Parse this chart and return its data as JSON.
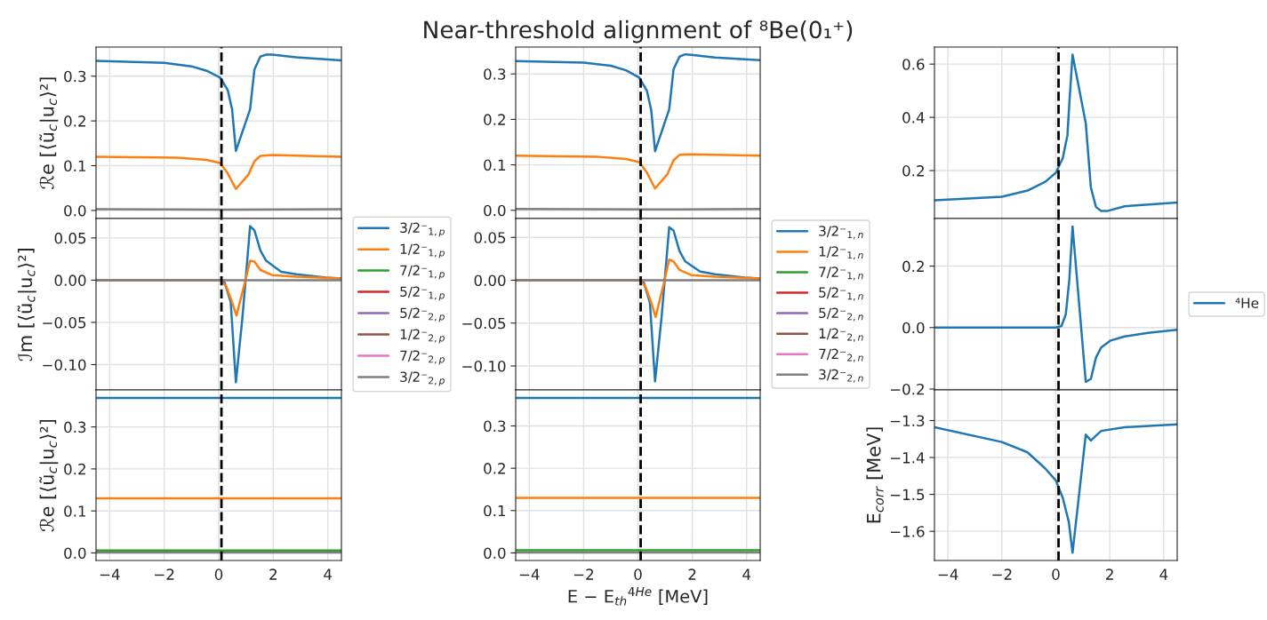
{
  "chart_data": [
    {
      "type": "line",
      "ylabel": "ℛe [⟨ũ$_{c}$|u$_{c}$⟩²]",
      "xlim": [
        -4.5,
        4.5
      ],
      "ylim": [
        -0.018,
        0.365
      ],
      "xticks": [
        {
          "value": -4,
          "label": null
        },
        {
          "value": -2,
          "label": null
        },
        {
          "value": 0,
          "label": null
        },
        {
          "value": 2,
          "label": null
        },
        {
          "value": 4,
          "label": null
        }
      ],
      "yticks": [
        {
          "value": 0,
          "label": "0.0"
        },
        0.1,
        0.2,
        0.3
      ],
      "tick_labels": "y",
      "grid": true,
      "ref_lines": [
        {
          "axis": "x",
          "value": 0.1,
          "color": "#000000",
          "line_style": "dashed"
        }
      ],
      "series": [
        {
          "color": "#1f77b4",
          "x": [
            -4.5,
            -2.0,
            -1.0,
            -0.44,
            0.05,
            0.33,
            0.49,
            0.63,
            1.15,
            1.31,
            1.53,
            1.74,
            1.96,
            2.84,
            4.5
          ],
          "values": [
            0.334,
            0.33,
            0.322,
            0.312,
            0.297,
            0.269,
            0.226,
            0.133,
            0.226,
            0.315,
            0.344,
            0.348,
            0.348,
            0.342,
            0.335
          ]
        },
        {
          "color": "#ff7f0e",
          "x": [
            -4.5,
            -1.53,
            -0.44,
            0.05,
            0.33,
            0.63,
            1.09,
            1.31,
            1.53,
            1.96,
            4.5
          ],
          "values": [
            0.12,
            0.118,
            0.113,
            0.106,
            0.083,
            0.048,
            0.08,
            0.11,
            0.122,
            0.124,
            0.12
          ]
        },
        {
          "color": "#7f7f7f",
          "x": [
            -4.5,
            0.6,
            4.5
          ],
          "values": [
            0.003,
            0.002,
            0.003
          ]
        }
      ]
    },
    {
      "type": "line",
      "title": "Near-threshold alignment of ⁸Be(0₁⁺)",
      "xlim": [
        -4.5,
        4.5
      ],
      "ylim": [
        -0.018,
        0.359
      ],
      "xticks": [
        {
          "value": -4,
          "label": null
        },
        {
          "value": -2,
          "label": null
        },
        {
          "value": 0,
          "label": null
        },
        {
          "value": 2,
          "label": null
        },
        {
          "value": 4,
          "label": null
        }
      ],
      "yticks": [
        {
          "value": 0,
          "label": "0.0"
        },
        0.1,
        0.2,
        0.3
      ],
      "tick_labels": "y",
      "grid": true,
      "ref_lines": [
        {
          "axis": "x",
          "value": 0.1,
          "color": "#000000",
          "line_style": "dashed"
        }
      ],
      "series": [
        {
          "color": "#1f77b4",
          "x": [
            -4.5,
            -2.0,
            -1.0,
            -0.44,
            0.05,
            0.33,
            0.49,
            0.63,
            1.15,
            1.31,
            1.53,
            1.74,
            1.96,
            2.84,
            4.5
          ],
          "values": [
            0.328,
            0.325,
            0.318,
            0.308,
            0.292,
            0.263,
            0.22,
            0.13,
            0.222,
            0.31,
            0.338,
            0.343,
            0.342,
            0.336,
            0.33
          ]
        },
        {
          "color": "#ff7f0e",
          "x": [
            -4.5,
            -1.53,
            -0.44,
            0.05,
            0.33,
            0.63,
            1.09,
            1.31,
            1.53,
            1.96,
            4.5
          ],
          "values": [
            0.12,
            0.118,
            0.113,
            0.106,
            0.083,
            0.048,
            0.08,
            0.11,
            0.122,
            0.123,
            0.12
          ]
        },
        {
          "color": "#7f7f7f",
          "x": [
            -4.5,
            0.6,
            4.5
          ],
          "values": [
            0.003,
            0.002,
            0.003
          ]
        }
      ]
    },
    {
      "type": "line",
      "xlim": [
        -4.5,
        4.5
      ],
      "ylim": [
        0.02,
        0.664
      ],
      "xticks": [
        {
          "value": -4,
          "label": null
        },
        {
          "value": -2,
          "label": null
        },
        {
          "value": 0,
          "label": null
        },
        {
          "value": 2,
          "label": null
        },
        {
          "value": 4,
          "label": null
        }
      ],
      "yticks": [
        0.2,
        0.4,
        0.6
      ],
      "tick_labels": "y",
      "grid": true,
      "ref_lines": [
        {
          "axis": "x",
          "value": 0.1,
          "color": "#000000",
          "line_style": "dashed"
        }
      ],
      "series": [
        {
          "color": "#1f77b4",
          "x": [
            -4.5,
            -2.0,
            -1.05,
            -0.39,
            0.0,
            0.26,
            0.43,
            0.5,
            0.62,
            1.11,
            1.3,
            1.49,
            1.68,
            1.9,
            2.55,
            3.21,
            4.5
          ],
          "values": [
            0.088,
            0.102,
            0.125,
            0.158,
            0.192,
            0.248,
            0.333,
            0.451,
            0.636,
            0.378,
            0.136,
            0.063,
            0.048,
            0.048,
            0.066,
            0.071,
            0.08
          ]
        }
      ]
    },
    {
      "type": "line",
      "ylabel": "ℐm [⟨ũ$_{c}$|u$_{c}$⟩²]",
      "xlim": [
        -4.5,
        4.5
      ],
      "ylim": [
        -0.13,
        0.073
      ],
      "xticks": [
        {
          "value": -4,
          "label": null
        },
        {
          "value": -2,
          "label": null
        },
        {
          "value": 0,
          "label": null
        },
        {
          "value": 2,
          "label": null
        },
        {
          "value": 4,
          "label": null
        }
      ],
      "yticks": [
        {
          "value": -0.1,
          "label": "−0.10"
        },
        {
          "value": -0.05,
          "label": "−0.05"
        },
        {
          "value": 0,
          "label": "0.00"
        },
        0.05
      ],
      "tick_labels": "y",
      "grid": true,
      "legend": "right",
      "ref_lines": [
        {
          "axis": "x",
          "value": 0.1,
          "color": "#000000",
          "line_style": "dashed"
        }
      ],
      "series": [
        {
          "name": "3/2⁻$_{1,p}$",
          "color": "#1f77b4",
          "x": [
            -4.5,
            0.05,
            0.22,
            0.44,
            0.63,
            0.87,
            0.98,
            1.15,
            1.31,
            1.53,
            1.74,
            2.29,
            2.84,
            3.93,
            4.5
          ],
          "values": [
            0,
            0,
            -0.003,
            -0.026,
            -0.121,
            -0.044,
            -0.002,
            0.064,
            0.059,
            0.035,
            0.023,
            0.01,
            0.007,
            0.003,
            0.002
          ]
        },
        {
          "name": "1/2⁻$_{1,p}$",
          "color": "#ff7f0e",
          "x": [
            -4.5,
            0.05,
            0.27,
            0.49,
            0.65,
            0.98,
            1.15,
            1.31,
            1.53,
            1.96,
            2.84,
            4.5
          ],
          "values": [
            0,
            0,
            -0.007,
            -0.026,
            -0.042,
            0,
            0.023,
            0.022,
            0.012,
            0.006,
            0.004,
            0.002
          ]
        },
        {
          "name": "7/2⁻$_{1,p}$",
          "color": "#2ca02c",
          "values": [
            null
          ]
        },
        {
          "name": "5/2⁻$_{1,p}$",
          "color": "#d62728",
          "values": [
            null
          ]
        },
        {
          "name": "5/2⁻$_{2,p}$",
          "color": "#9467bd",
          "values": [
            null
          ]
        },
        {
          "name": "1/2⁻$_{2,p}$",
          "color": "#8c564b",
          "values": [
            null
          ]
        },
        {
          "name": "7/2⁻$_{2,p}$",
          "color": "#e377c2",
          "values": [
            null
          ]
        },
        {
          "name": "3/2⁻$_{2,p}$",
          "color": "#7f7f7f",
          "x": [
            -4.5,
            0.05,
            4.5
          ],
          "values": [
            0,
            0,
            0
          ]
        }
      ]
    },
    {
      "type": "line",
      "xlim": [
        -4.5,
        4.5
      ],
      "ylim": [
        -0.128,
        0.072
      ],
      "xticks": [
        {
          "value": -4,
          "label": null
        },
        {
          "value": -2,
          "label": null
        },
        {
          "value": 0,
          "label": null
        },
        {
          "value": 2,
          "label": null
        },
        {
          "value": 4,
          "label": null
        }
      ],
      "yticks": [
        {
          "value": -0.1,
          "label": "−0.10"
        },
        {
          "value": -0.05,
          "label": "−0.05"
        },
        {
          "value": 0,
          "label": "0.00"
        },
        0.05
      ],
      "tick_labels": "y",
      "grid": true,
      "legend": "right",
      "ref_lines": [
        {
          "axis": "x",
          "value": 0.1,
          "color": "#000000",
          "line_style": "dashed"
        }
      ],
      "series": [
        {
          "name": "3/2⁻$_{1,n}$",
          "color": "#1f77b4",
          "x": [
            -4.5,
            0.05,
            0.22,
            0.44,
            0.63,
            0.87,
            0.98,
            1.15,
            1.31,
            1.53,
            1.74,
            2.29,
            2.84,
            3.93,
            4.5
          ],
          "values": [
            0,
            0,
            -0.003,
            -0.026,
            -0.118,
            -0.043,
            -0.002,
            0.062,
            0.058,
            0.034,
            0.022,
            0.01,
            0.007,
            0.003,
            0.002
          ]
        },
        {
          "name": "1/2⁻$_{1,n}$",
          "color": "#ff7f0e",
          "x": [
            -4.5,
            0.05,
            0.27,
            0.49,
            0.65,
            0.98,
            1.15,
            1.31,
            1.53,
            1.96,
            2.84,
            4.5
          ],
          "values": [
            0,
            0,
            -0.007,
            -0.026,
            -0.043,
            0,
            0.024,
            0.022,
            0.012,
            0.006,
            0.004,
            0.002
          ]
        },
        {
          "name": "7/2⁻$_{1,n}$",
          "color": "#2ca02c",
          "values": [
            null
          ]
        },
        {
          "name": "5/2⁻$_{1,n}$",
          "color": "#d62728",
          "values": [
            null
          ]
        },
        {
          "name": "5/2⁻$_{2,n}$",
          "color": "#9467bd",
          "values": [
            null
          ]
        },
        {
          "name": "1/2⁻$_{2,n}$",
          "color": "#8c564b",
          "values": [
            null
          ]
        },
        {
          "name": "7/2⁻$_{2,n}$",
          "color": "#e377c2",
          "values": [
            null
          ]
        },
        {
          "name": "3/2⁻$_{2,n}$",
          "color": "#7f7f7f",
          "x": [
            -4.5,
            0.05,
            4.5
          ],
          "values": [
            0,
            0,
            0
          ]
        }
      ]
    },
    {
      "type": "line",
      "xlim": [
        -4.5,
        4.5
      ],
      "ylim": [
        -0.203,
        0.355
      ],
      "xticks": [
        {
          "value": -4,
          "label": null
        },
        {
          "value": -2,
          "label": null
        },
        {
          "value": 0,
          "label": null
        },
        {
          "value": 2,
          "label": null
        },
        {
          "value": 4,
          "label": null
        }
      ],
      "yticks": [
        {
          "value": -0.2,
          "label": "−0.2"
        },
        {
          "value": 0,
          "label": "0.0"
        },
        0.2
      ],
      "tick_labels": "y",
      "grid": true,
      "legend": "right",
      "ref_lines": [
        {
          "axis": "x",
          "value": 0.1,
          "color": "#000000",
          "line_style": "dashed"
        }
      ],
      "series": [
        {
          "name": "⁴He",
          "color": "#1f77b4",
          "x": [
            -4.5,
            0.0,
            0.21,
            0.37,
            0.5,
            0.62,
            1.11,
            1.3,
            1.49,
            1.68,
            2.01,
            2.55,
            3.42,
            4.5
          ],
          "values": [
            0,
            0,
            0.005,
            0.043,
            0.155,
            0.329,
            -0.177,
            -0.167,
            -0.097,
            -0.065,
            -0.043,
            -0.029,
            -0.017,
            -0.007
          ]
        }
      ]
    },
    {
      "type": "line",
      "ylabel": "ℛe [⟨ũ$_{c}$|u$_{c}$⟩²]",
      "xlim": [
        -4.5,
        4.5
      ],
      "ylim": [
        -0.018,
        0.388
      ],
      "xticks": [
        {
          "value": -4,
          "label": "−4"
        },
        {
          "value": -2,
          "label": "−2"
        },
        0,
        2,
        4
      ],
      "yticks": [
        {
          "value": 0,
          "label": "0.0"
        },
        0.1,
        0.2,
        0.3
      ],
      "grid": true,
      "ref_lines": [
        {
          "axis": "x",
          "value": 0.1,
          "color": "#000000",
          "line_style": "dashed"
        }
      ],
      "series": [
        {
          "color": "#1f77b4",
          "x": [
            -4.5,
            4.5
          ],
          "values": [
            0.369,
            0.369
          ]
        },
        {
          "color": "#ff7f0e",
          "x": [
            -4.5,
            4.5
          ],
          "values": [
            0.13,
            0.13
          ]
        },
        {
          "color": "#2ca02c",
          "x": [
            -4.5,
            4.5
          ],
          "values": [
            0.006,
            0.006
          ]
        },
        {
          "color": "#7f7f7f",
          "x": [
            -4.5,
            4.5
          ],
          "values": [
            0.001,
            0.001
          ]
        }
      ]
    },
    {
      "type": "line",
      "xlabel": "E − E$_{th}$$^{4He}$ [MeV]",
      "xlim": [
        -4.5,
        4.5
      ],
      "ylim": [
        -0.018,
        0.385
      ],
      "xticks": [
        {
          "value": -4,
          "label": "−4"
        },
        {
          "value": -2,
          "label": "−2"
        },
        0,
        2,
        4
      ],
      "yticks": [
        {
          "value": 0,
          "label": "0.0"
        },
        0.1,
        0.2,
        0.3
      ],
      "grid": true,
      "ref_lines": [
        {
          "axis": "x",
          "value": 0.1,
          "color": "#000000",
          "line_style": "dashed"
        }
      ],
      "series": [
        {
          "color": "#1f77b4",
          "x": [
            -4.5,
            4.5
          ],
          "values": [
            0.366,
            0.366
          ]
        },
        {
          "color": "#ff7f0e",
          "x": [
            -4.5,
            4.5
          ],
          "values": [
            0.13,
            0.13
          ]
        },
        {
          "color": "#2ca02c",
          "x": [
            -4.5,
            4.5
          ],
          "values": [
            0.006,
            0.006
          ]
        },
        {
          "color": "#7f7f7f",
          "x": [
            -4.5,
            4.5
          ],
          "values": [
            0.001,
            0.001
          ]
        }
      ]
    },
    {
      "type": "line",
      "ylabel": "E$_{corr}$ [MeV]",
      "xlim": [
        -4.5,
        4.5
      ],
      "ylim": [
        -1.679,
        -1.217
      ],
      "xticks": [
        {
          "value": -4,
          "label": "−4"
        },
        {
          "value": -2,
          "label": "−2"
        },
        0,
        2,
        4
      ],
      "yticks": [
        {
          "value": -1.6,
          "label": "−1.6"
        },
        {
          "value": -1.5,
          "label": "−1.5"
        },
        {
          "value": -1.4,
          "label": "−1.4"
        },
        {
          "value": -1.3,
          "label": "−1.3"
        }
      ],
      "grid": true,
      "ref_lines": [
        {
          "axis": "x",
          "value": 0.1,
          "color": "#000000",
          "line_style": "dashed"
        }
      ],
      "series": [
        {
          "color": "#1f77b4",
          "x": [
            -4.5,
            -2.0,
            -1.05,
            -0.39,
            0.0,
            0.26,
            0.48,
            0.62,
            1.11,
            1.3,
            1.68,
            2.55,
            4.5
          ],
          "values": [
            -1.318,
            -1.358,
            -1.386,
            -1.43,
            -1.462,
            -1.51,
            -1.574,
            -1.658,
            -1.338,
            -1.354,
            -1.328,
            -1.318,
            -1.31
          ]
        }
      ]
    }
  ]
}
